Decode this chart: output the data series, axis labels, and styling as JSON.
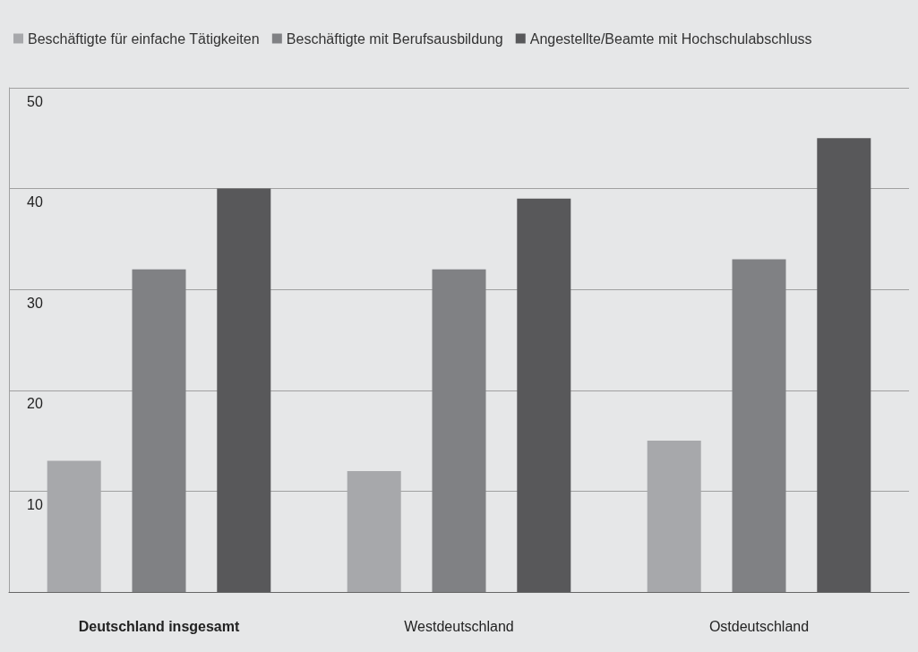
{
  "chart_data": {
    "type": "bar",
    "categories": [
      "Deutschland insgesamt",
      "Westdeutschland",
      "Ostdeutschland"
    ],
    "series": [
      {
        "name": "Beschäftigte für einfache Tätigkeiten",
        "color": "#a7a8ab",
        "values": [
          13,
          12,
          15
        ]
      },
      {
        "name": "Beschäftigte mit Berufsausbildung",
        "color": "#808184",
        "values": [
          32,
          32,
          33
        ]
      },
      {
        "name": "Angestellte/Beamte mit Hochschulabschluss",
        "color": "#58585a",
        "values": [
          40,
          39,
          45
        ]
      }
    ],
    "ylim": [
      0,
      50
    ],
    "yticks": [
      {
        "value": 0,
        "label": null
      },
      10,
      20,
      30,
      40,
      50
    ],
    "grid": "y",
    "legend": "top left"
  }
}
